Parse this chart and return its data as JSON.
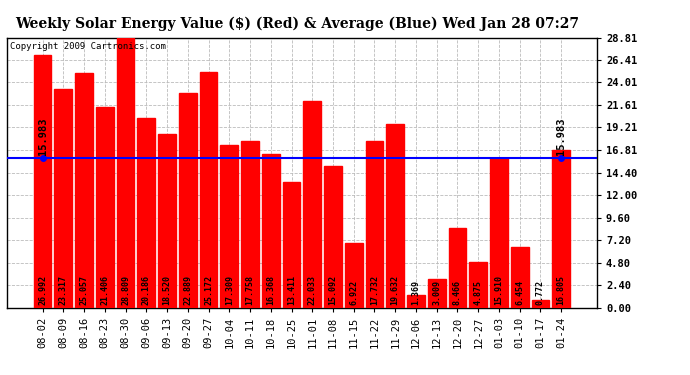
{
  "title": "Weekly Solar Energy Value ($) (Red) & Average (Blue) Wed Jan 28 07:27",
  "copyright": "Copyright 2009 Cartronics.com",
  "categories": [
    "08-02",
    "08-09",
    "08-16",
    "08-23",
    "08-30",
    "09-06",
    "09-13",
    "09-20",
    "09-27",
    "10-04",
    "10-11",
    "10-18",
    "10-25",
    "11-01",
    "11-08",
    "11-15",
    "11-22",
    "11-29",
    "12-06",
    "12-13",
    "12-20",
    "12-27",
    "01-03",
    "01-10",
    "01-17",
    "01-24"
  ],
  "values": [
    26.992,
    23.317,
    25.057,
    21.406,
    28.809,
    20.186,
    18.52,
    22.889,
    25.172,
    17.309,
    17.758,
    16.368,
    13.411,
    22.033,
    15.092,
    6.922,
    17.732,
    19.632,
    1.369,
    3.009,
    8.466,
    4.875,
    15.91,
    6.454,
    0.772,
    16.805
  ],
  "average": 15.983,
  "bar_color": "#ff0000",
  "avg_line_color": "#0000ff",
  "ylim": [
    0,
    28.81
  ],
  "yticks": [
    0.0,
    2.4,
    4.8,
    7.2,
    9.6,
    12.0,
    14.4,
    16.81,
    19.21,
    21.61,
    24.01,
    26.41,
    28.81
  ],
  "background_color": "#ffffff",
  "plot_bg_color": "#ffffff",
  "grid_color": "#bbbbbb",
  "title_fontsize": 10,
  "copyright_fontsize": 6.5,
  "tick_fontsize": 7.5,
  "value_fontsize": 6.0
}
